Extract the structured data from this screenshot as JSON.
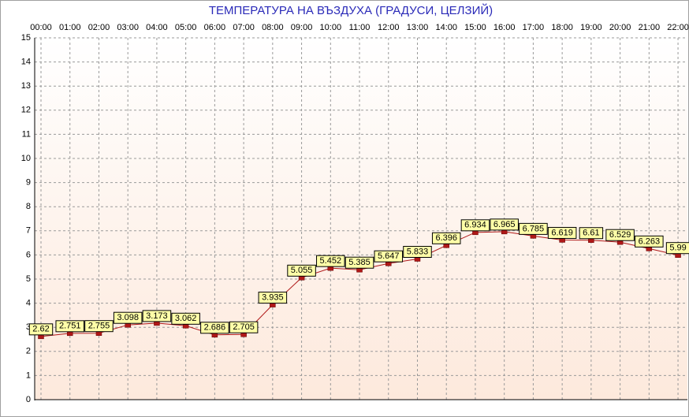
{
  "chart_data": {
    "type": "line",
    "title": "ТЕМПЕРАТУРА НА ВЪЗДУХА  (ГРАДУСИ, ЦЕЛЗИЙ)",
    "categories": [
      "00:00",
      "01:00",
      "02:00",
      "03:00",
      "04:00",
      "05:00",
      "06:00",
      "07:00",
      "08:00",
      "09:00",
      "10:00",
      "11:00",
      "12:00",
      "13:00",
      "14:00",
      "15:00",
      "16:00",
      "17:00",
      "18:00",
      "19:00",
      "20:00",
      "21:00",
      "22:00"
    ],
    "series": [
      {
        "name": "Temperature",
        "color": "#b01818",
        "values": [
          2.62,
          2.751,
          2.755,
          3.098,
          3.173,
          3.062,
          2.686,
          2.705,
          3.935,
          5.055,
          5.452,
          5.385,
          5.647,
          5.833,
          6.396,
          6.934,
          6.965,
          6.785,
          6.619,
          6.61,
          6.529,
          6.263,
          5.99
        ]
      }
    ],
    "ylim": [
      0,
      15
    ],
    "yticks": [
      0,
      1,
      2,
      3,
      4,
      5,
      6,
      7,
      8,
      9,
      10,
      11,
      12,
      13,
      14,
      15
    ],
    "grid": true
  }
}
